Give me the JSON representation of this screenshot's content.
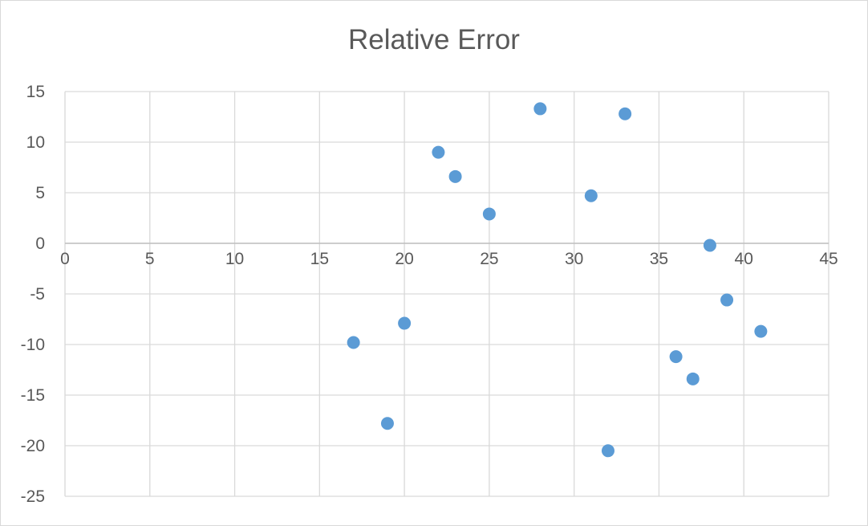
{
  "chart_data": {
    "type": "scatter",
    "title": "Relative Error",
    "xlabel": "",
    "ylabel": "",
    "xlim": [
      0,
      45
    ],
    "ylim": [
      -25,
      15
    ],
    "x_ticks": [
      "0",
      "5",
      "10",
      "15",
      "20",
      "25",
      "30",
      "35",
      "40",
      "45"
    ],
    "y_ticks": [
      "15",
      "10",
      "5",
      "0",
      "-5",
      "-10",
      "-15",
      "-20",
      "-25"
    ],
    "grid": true,
    "legend": "none",
    "marker_color": "#5b9bd5",
    "series": [
      {
        "points": [
          {
            "x": 17,
            "y": -9.8
          },
          {
            "x": 19,
            "y": -17.8
          },
          {
            "x": 20,
            "y": -7.9
          },
          {
            "x": 22,
            "y": 9.0
          },
          {
            "x": 23,
            "y": 6.6
          },
          {
            "x": 25,
            "y": 2.9
          },
          {
            "x": 28,
            "y": 13.3
          },
          {
            "x": 31,
            "y": 4.7
          },
          {
            "x": 32,
            "y": -20.5
          },
          {
            "x": 33,
            "y": 12.8
          },
          {
            "x": 36,
            "y": -11.2
          },
          {
            "x": 37,
            "y": -13.4
          },
          {
            "x": 38,
            "y": -0.2
          },
          {
            "x": 39,
            "y": -5.6
          },
          {
            "x": 41,
            "y": -8.7
          }
        ]
      }
    ]
  }
}
